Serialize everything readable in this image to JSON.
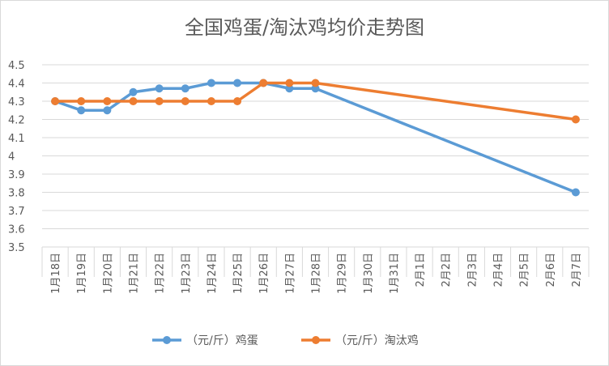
{
  "chart_data": {
    "type": "line",
    "title": "全国鸡蛋/淘汰鸡均价走势图",
    "categories": [
      "1月18日",
      "1月19日",
      "1月20日",
      "1月21日",
      "1月22日",
      "1月23日",
      "1月24日",
      "1月25日",
      "1月26日",
      "1月27日",
      "1月28日",
      "1月29日",
      "1月30日",
      "1月31日",
      "2月1日",
      "2月2日",
      "2月3日",
      "2月4日",
      "2月5日",
      "2月6日",
      "2月7日"
    ],
    "y_ticks": [
      "3.5",
      "3.6",
      "3.7",
      "3.8",
      "3.9",
      "4",
      "4.1",
      "4.2",
      "4.3",
      "4.4",
      "4.5"
    ],
    "ylim": [
      3.5,
      4.5
    ],
    "grid": true,
    "legend_position": "bottom",
    "series": [
      {
        "name": "（元/斤）鸡蛋",
        "color": "#5b9bd5",
        "values": [
          4.3,
          4.25,
          4.25,
          4.35,
          4.37,
          4.37,
          4.4,
          4.4,
          4.4,
          4.37,
          4.37,
          null,
          null,
          null,
          null,
          null,
          null,
          null,
          null,
          null,
          3.8
        ]
      },
      {
        "name": "（元/斤）淘汰鸡",
        "color": "#ed7d31",
        "values": [
          4.3,
          4.3,
          4.3,
          4.3,
          4.3,
          4.3,
          4.3,
          4.3,
          4.4,
          4.4,
          4.4,
          null,
          null,
          null,
          null,
          null,
          null,
          null,
          null,
          null,
          4.2
        ]
      }
    ]
  }
}
